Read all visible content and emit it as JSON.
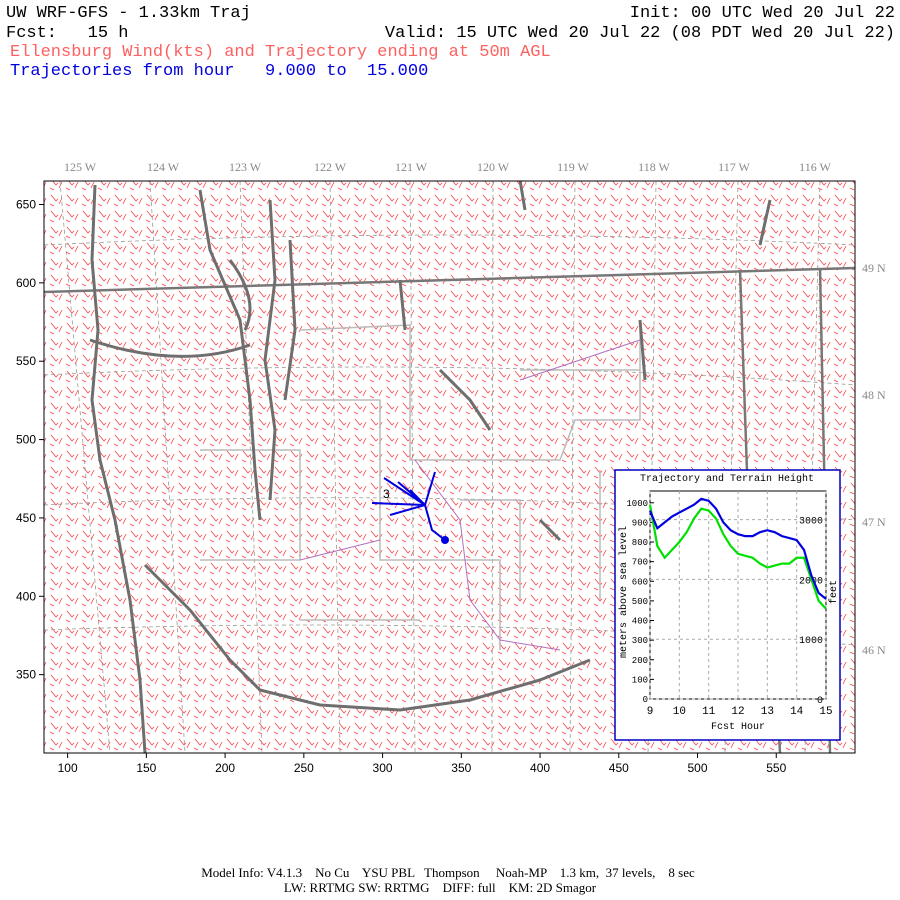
{
  "header": {
    "title": "UW WRF-GFS - 1.33km Traj",
    "init": "Init: 00 UTC Wed 20 Jul 22",
    "fcst": "Fcst:   15 h",
    "valid": "Valid: 15 UTC Wed 20 Jul 22 (08 PDT Wed 20 Jul 22)",
    "subtitle": "Ellensburg Wind(kts) and Trajectory ending at 50m AGL",
    "trajectories": "Trajectories from hour   9.000 to  15.000"
  },
  "map": {
    "xlim": [
      85,
      600
    ],
    "ylim": [
      300,
      665
    ],
    "xticks": [
      100,
      150,
      200,
      250,
      300,
      350,
      400,
      450,
      500,
      550
    ],
    "yticks": [
      350,
      400,
      450,
      500,
      550,
      600,
      650
    ],
    "longitudes": [
      "125 W",
      "124 W",
      "123 W",
      "122 W",
      "121 W",
      "120 W",
      "119 W",
      "118 W",
      "117 W",
      "116 W"
    ],
    "latitudes": [
      "49 N",
      "48 N",
      "47 N",
      "46 N"
    ],
    "trajectory_label": "3"
  },
  "chart_data": {
    "type": "line",
    "title": "Trajectory and Terrain Height",
    "xlabel": "Fcst Hour",
    "ylabel": "meters above sea level",
    "y2label": "feet",
    "x": [
      9,
      9.25,
      9.5,
      9.75,
      10,
      10.25,
      10.5,
      10.75,
      11,
      11.25,
      11.5,
      11.75,
      12,
      12.25,
      12.5,
      12.75,
      13,
      13.25,
      13.5,
      13.75,
      14,
      14.25,
      14.5,
      14.75,
      15
    ],
    "series": [
      {
        "color": "#00e000",
        "values": [
          990,
          780,
          720,
          760,
          800,
          850,
          920,
          970,
          960,
          920,
          840,
          780,
          740,
          730,
          720,
          690,
          670,
          680,
          690,
          690,
          720,
          720,
          610,
          500,
          460
        ]
      },
      {
        "color": "#0000e0",
        "values": [
          960,
          870,
          900,
          930,
          950,
          970,
          990,
          1020,
          1010,
          970,
          900,
          860,
          840,
          830,
          830,
          850,
          860,
          850,
          830,
          820,
          810,
          760,
          630,
          540,
          510
        ]
      }
    ],
    "xlim": [
      9,
      15
    ],
    "xticks": [
      9,
      10,
      11,
      12,
      13,
      14,
      15
    ],
    "ylim": [
      0,
      1060
    ],
    "yticks": [
      0,
      100,
      200,
      300,
      400,
      500,
      600,
      700,
      800,
      900,
      1000
    ],
    "y2lim": [
      0,
      3478
    ],
    "y2ticks": [
      0,
      1000,
      2000,
      3000
    ],
    "grid": true
  },
  "footer": {
    "line1": "Model Info: V4.1.3    No Cu    YSU PBL   Thompson     Noah-MP    1.3 km,  37 levels,    8 sec",
    "line2": "LW: RRTMG SW: RRTMG    DIFF: full    KM: 2D Smagor"
  }
}
